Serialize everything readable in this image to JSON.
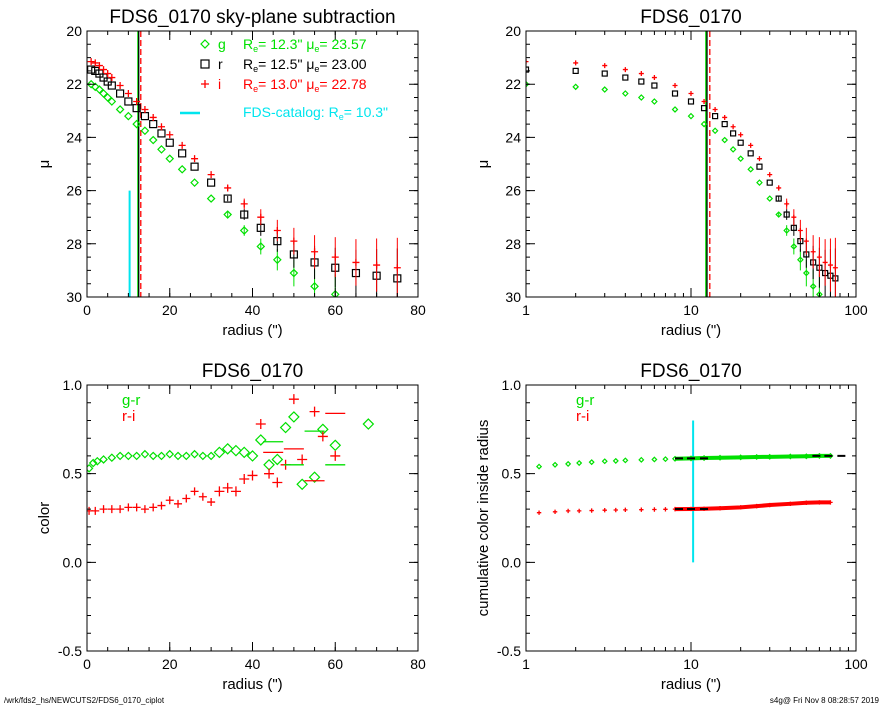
{
  "footer": {
    "path": "/wrk/fds2_hs/NEWCUTS2/FDS6_0170_ciplot",
    "stamp": "s4g@  Fri Nov  8 08:28:57 2019"
  },
  "colors": {
    "g": "#00e000",
    "r": "#000000",
    "i": "#ff0000",
    "catalog": "#00e5ee"
  },
  "chart_data": [
    {
      "type": "scatter",
      "title": "FDS6_0170 sky-plane subtraction",
      "xlabel": "radius (\")",
      "ylabel": "μ",
      "xlim": [
        0,
        80
      ],
      "ylim": [
        30,
        20
      ],
      "xscale": "linear",
      "xticks": [
        "0",
        "20",
        "40",
        "60",
        "80"
      ],
      "yticks": [
        "20",
        "22",
        "24",
        "26",
        "28",
        "30"
      ],
      "legend": [
        {
          "symbol": "diamond",
          "band": "g",
          "Re": "12.3\"",
          "mue": "23.57"
        },
        {
          "symbol": "square",
          "band": "r",
          "Re": "12.5\"",
          "mue": "23.00"
        },
        {
          "symbol": "plus",
          "band": "i",
          "Re": "13.0\"",
          "mue": "22.78"
        },
        {
          "symbol": "line",
          "label": "FDS-catalog: R",
          "Re": "10.3\""
        }
      ],
      "vlines": [
        {
          "x": 12.3,
          "band": "g"
        },
        {
          "x": 12.5,
          "band": "r"
        },
        {
          "x": 13.0,
          "band": "i",
          "dashed": true
        },
        {
          "x": 10.3,
          "band": "catalog",
          "y": [
            26,
            30
          ]
        }
      ]
    },
    {
      "type": "scatter",
      "title": "FDS6_0170",
      "xlabel": "radius (\")",
      "ylabel": "μ",
      "xlim": [
        1,
        100
      ],
      "ylim": [
        30,
        20
      ],
      "xscale": "log",
      "xticks": [
        "1",
        "10",
        "100"
      ],
      "yticks": [
        "20",
        "22",
        "24",
        "26",
        "28",
        "30"
      ],
      "vlines": [
        {
          "x": 12.3,
          "band": "g"
        },
        {
          "x": 12.5,
          "band": "r"
        },
        {
          "x": 13.0,
          "band": "i",
          "dashed": true
        }
      ]
    },
    {
      "type": "scatter",
      "title": "FDS6_0170",
      "xlabel": "radius (\")",
      "ylabel": "color",
      "xlim": [
        0,
        80
      ],
      "ylim": [
        -0.5,
        1.0
      ],
      "xscale": "linear",
      "xticks": [
        "0",
        "20",
        "40",
        "60",
        "80"
      ],
      "yticks": [
        "-0.5",
        "0.0",
        "0.5",
        "1.0"
      ],
      "legend": [
        "g-r",
        "r-i"
      ]
    },
    {
      "type": "scatter",
      "title": "FDS6_0170",
      "xlabel": "radius (\")",
      "ylabel": "cumulative color inside radius",
      "xlim": [
        1,
        100
      ],
      "ylim": [
        -0.5,
        1.0
      ],
      "xscale": "log",
      "xticks": [
        "1",
        "10",
        "100"
      ],
      "yticks": [
        "-0.5",
        "0.0",
        "0.5",
        "1.0"
      ],
      "legend": [
        "g-r",
        "r-i"
      ],
      "vlines": [
        {
          "x": 10.3,
          "band": "catalog",
          "y": [
            0.0,
            0.8
          ]
        }
      ]
    }
  ],
  "profiles": {
    "radius": [
      1,
      2,
      3,
      4,
      5,
      6,
      8,
      10,
      12,
      14,
      16,
      18,
      20,
      23,
      26,
      30,
      34,
      38,
      42,
      46,
      50,
      55,
      60,
      65,
      70,
      75
    ],
    "g": [
      22.0,
      22.1,
      22.2,
      22.35,
      22.5,
      22.65,
      22.95,
      23.2,
      23.5,
      23.75,
      24.1,
      24.45,
      24.8,
      25.2,
      25.7,
      26.3,
      26.9,
      27.5,
      28.1,
      28.6,
      29.1,
      29.6,
      29.9,
      null,
      null,
      null
    ],
    "r": [
      21.45,
      21.5,
      21.6,
      21.75,
      21.9,
      22.05,
      22.35,
      22.65,
      22.9,
      23.2,
      23.5,
      23.85,
      24.2,
      24.6,
      25.1,
      25.7,
      26.3,
      26.9,
      27.4,
      27.9,
      28.4,
      28.7,
      28.9,
      29.1,
      29.2,
      29.3
    ],
    "i": [
      21.15,
      21.2,
      21.3,
      21.45,
      21.6,
      21.75,
      22.05,
      22.35,
      22.65,
      22.95,
      23.25,
      23.6,
      23.9,
      24.3,
      24.8,
      25.4,
      25.9,
      26.5,
      27.0,
      27.5,
      27.9,
      28.3,
      28.5,
      28.7,
      28.8,
      28.9
    ]
  },
  "colors_profile": {
    "gr": {
      "radius": [
        0.5,
        1.5,
        2.5,
        4,
        6,
        8,
        10,
        12,
        14,
        16,
        18,
        20,
        22,
        24,
        26,
        28,
        30,
        32,
        34,
        36,
        38,
        40,
        42,
        44,
        46,
        48,
        50,
        52,
        55,
        57,
        60,
        68
      ],
      "value": [
        0.53,
        0.56,
        0.57,
        0.58,
        0.59,
        0.6,
        0.6,
        0.6,
        0.61,
        0.6,
        0.6,
        0.61,
        0.6,
        0.6,
        0.61,
        0.6,
        0.6,
        0.62,
        0.64,
        0.63,
        0.62,
        0.6,
        0.69,
        0.55,
        0.58,
        0.76,
        0.82,
        0.44,
        0.48,
        0.75,
        0.66,
        0.78
      ]
    },
    "ri": {
      "radius": [
        0.5,
        2,
        4,
        6,
        8,
        10,
        12,
        14,
        16,
        18,
        20,
        22,
        24,
        26,
        28,
        30,
        32,
        34,
        36,
        38,
        40,
        42,
        44,
        46,
        48,
        50,
        52,
        55,
        57,
        60
      ],
      "value": [
        0.29,
        0.29,
        0.3,
        0.3,
        0.3,
        0.31,
        0.31,
        0.3,
        0.31,
        0.32,
        0.35,
        0.33,
        0.36,
        0.4,
        0.37,
        0.34,
        0.4,
        0.42,
        0.4,
        0.47,
        0.49,
        0.78,
        0.5,
        0.45,
        0.55,
        0.92,
        0.58,
        0.85,
        0.71,
        0.6
      ]
    },
    "gr_binned": {
      "radius": [
        45,
        50,
        55,
        60
      ],
      "value": [
        0.68,
        0.55,
        0.74,
        0.55
      ]
    },
    "ri_binned": {
      "radius": [
        45,
        50,
        55,
        60
      ],
      "value": [
        0.62,
        0.64,
        0.46,
        0.84
      ]
    }
  },
  "cumulative": {
    "radius": [
      1.2,
      1.5,
      1.8,
      2.1,
      2.5,
      3,
      3.5,
      4,
      5,
      6,
      7,
      8,
      10,
      12,
      15,
      20,
      25,
      30,
      40,
      50,
      60,
      70
    ],
    "gr": [
      0.54,
      0.55,
      0.555,
      0.56,
      0.565,
      0.57,
      0.572,
      0.575,
      0.578,
      0.58,
      0.582,
      0.584,
      0.586,
      0.588,
      0.59,
      0.592,
      0.594,
      0.595,
      0.597,
      0.598,
      0.6,
      0.6
    ],
    "ri": [
      0.28,
      0.285,
      0.29,
      0.29,
      0.292,
      0.294,
      0.295,
      0.296,
      0.297,
      0.298,
      0.299,
      0.3,
      0.301,
      0.302,
      0.305,
      0.31,
      0.317,
      0.323,
      0.33,
      0.336,
      0.338,
      0.338
    ],
    "marks": [
      {
        "x": 10,
        "series": "gr"
      },
      {
        "x": 10,
        "series": "ri"
      },
      {
        "x": 68,
        "series": "gr"
      }
    ]
  }
}
